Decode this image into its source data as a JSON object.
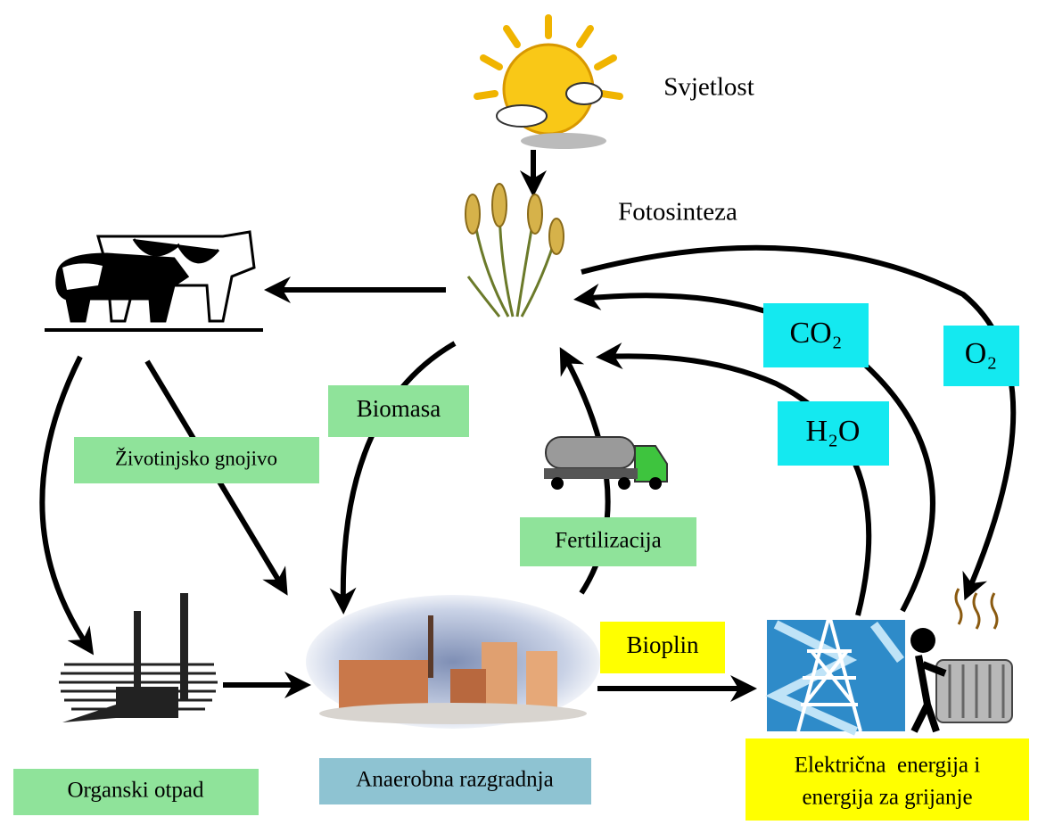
{
  "labels": {
    "light": "Svjetlost",
    "photosynthesis": "Fotosinteza",
    "biomass": "Biomasa",
    "manure": "Životinjsko gnojivo",
    "fertilization": "Fertilizacija",
    "co2": "CO₂",
    "o2": "O₂",
    "h2o": "H₂O",
    "biogas": "Bioplin",
    "organic_waste": "Organski otpad",
    "anaerobic_digestion": "Anaerobna razgradnja",
    "energy": [
      "Električna  energija i",
      "energija za grijanje"
    ]
  }
}
